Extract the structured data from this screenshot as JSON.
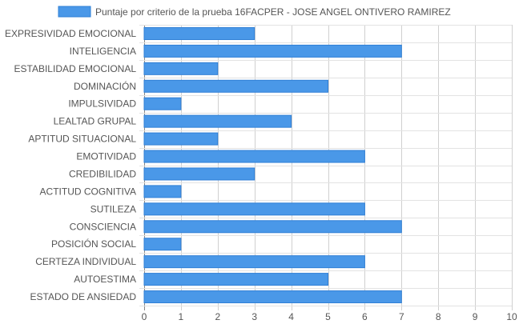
{
  "chart_data": {
    "type": "bar",
    "orientation": "horizontal",
    "categories": [
      "EXPRESIVIDAD EMOCIONAL",
      "INTELIGENCIA",
      "ESTABILIDAD EMOCIONAL",
      "DOMINACIÓN",
      "IMPULSIVIDAD",
      "LEALTAD GRUPAL",
      "APTITUD SITUACIONAL",
      "EMOTIVIDAD",
      "CREDIBILIDAD",
      "ACTITUD COGNITIVA",
      "SUTILEZA",
      "CONSCIENCIA",
      "POSICIÓN SOCIAL",
      "CERTEZA INDIVIDUAL",
      "AUTOESTIMA",
      "ESTADO DE ANSIEDAD"
    ],
    "series": [
      {
        "name": "Puntaje por criterio de la prueba 16FACPER - JOSE ANGEL ONTIVERO RAMIREZ",
        "values": [
          3,
          7,
          2,
          5,
          1,
          4,
          2,
          6,
          3,
          1,
          6,
          7,
          1,
          6,
          5,
          7
        ]
      }
    ],
    "xlim": [
      0,
      10
    ],
    "xticks": [
      "0",
      "1",
      "2",
      "3",
      "4",
      "5",
      "6",
      "7",
      "8",
      "9",
      "10"
    ],
    "grid": true,
    "legend_position": "top",
    "bar_color": "#4a98e8",
    "bar_border_color": "#2f7fd6"
  }
}
